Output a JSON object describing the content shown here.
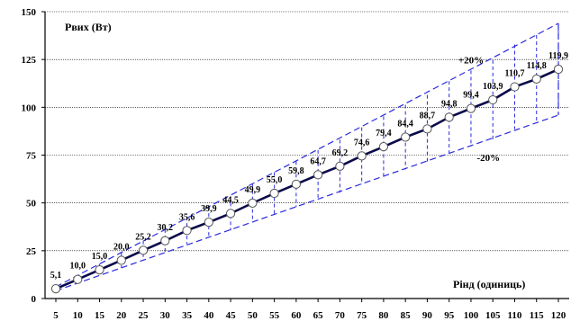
{
  "chart_data": {
    "type": "line",
    "ylabel": "Рвих (Вт)",
    "xlabel": "Рінд (одиниць)",
    "x": [
      5,
      10,
      15,
      20,
      25,
      30,
      35,
      40,
      45,
      50,
      55,
      60,
      65,
      70,
      75,
      80,
      85,
      90,
      95,
      100,
      105,
      110,
      115,
      120
    ],
    "series": [
      {
        "values": [
          5.1,
          10.0,
          15.0,
          20.0,
          25.2,
          30.2,
          35.6,
          39.9,
          44.5,
          49.9,
          55.0,
          59.8,
          64.7,
          69.2,
          74.6,
          79.4,
          84.4,
          88.7,
          94.8,
          99.4,
          103.9,
          110.7,
          114.8,
          119.9
        ],
        "labels": [
          "5,1",
          "10,0",
          "15,0",
          "20,0",
          "25,2",
          "30,2",
          "35,6",
          "39,9",
          "44,5",
          "49,9",
          "55,0",
          "59,8",
          "64,7",
          "69,2",
          "74,6",
          "79,4",
          "84,4",
          "88,7",
          "94,8",
          "99,4",
          "103,9",
          "110,7",
          "114,8",
          "119,9"
        ],
        "color": "#0a0a4a"
      }
    ],
    "band": {
      "upper_label": "+20%",
      "lower_label": "-20%",
      "upper_factor": 1.2,
      "lower_factor": 0.8,
      "color": "#2a2ae0"
    },
    "xticks": [
      "5",
      "10",
      "15",
      "20",
      "25",
      "30",
      "35",
      "40",
      "45",
      "50",
      "55",
      "60",
      "65",
      "70",
      "75",
      "80",
      "85",
      "90",
      "95",
      "100",
      "105",
      "110",
      "115",
      "120"
    ],
    "yticks": [
      "0",
      "25",
      "50",
      "75",
      "100",
      "125",
      "150"
    ],
    "xlim": [
      5,
      120
    ],
    "ylim": [
      0,
      150
    ],
    "grid": true
  }
}
